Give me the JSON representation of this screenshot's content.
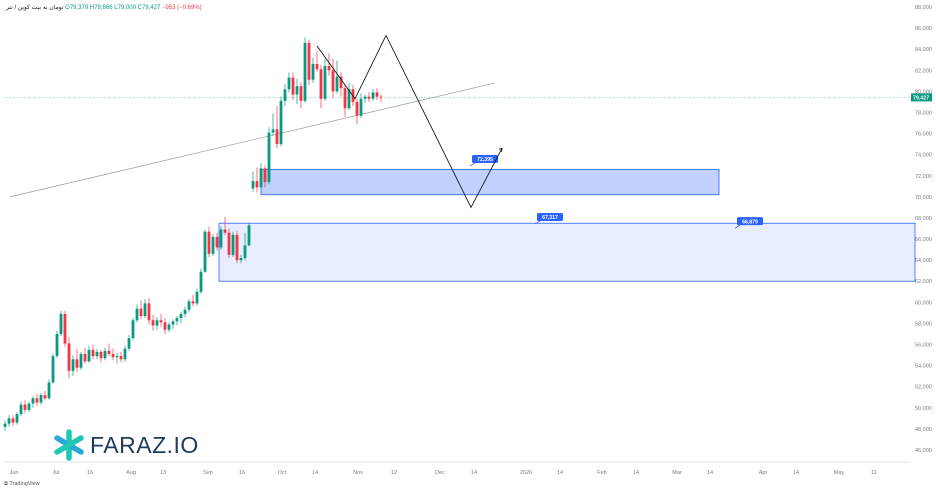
{
  "header": {
    "symbol": "تومان به بیت کوین / تتر",
    "open": "79,379",
    "high": "79,666",
    "low": "79,000",
    "close": "79,427",
    "change": "−953 (−0.69%)"
  },
  "brand": {
    "name": "FARAZ.IO"
  },
  "footer": {
    "provider": "TradingView"
  },
  "colors": {
    "up": "#089981",
    "down": "#f23645",
    "zone_strong": "#2962ff",
    "zone_light": "#e8eeff",
    "path": "#131722"
  },
  "chart_data": {
    "type": "candlestick",
    "ylim": [
      45000,
      88000
    ],
    "y_ticks": [
      46000,
      48000,
      50000,
      52000,
      54000,
      56000,
      58000,
      60000,
      62000,
      64000,
      66000,
      68000,
      70000,
      72000,
      74000,
      76000,
      78000,
      80000,
      82000,
      84000,
      86000,
      88000
    ],
    "x_ticks": [
      "Jun",
      "Jul",
      "16",
      "Aug",
      "13",
      "Sep",
      "16",
      "Oct",
      "14",
      "Nov",
      "12",
      "Dec",
      "14",
      "2026",
      "14",
      "Feb",
      "14",
      "Mar",
      "14",
      "Apr",
      "14",
      "May",
      "11"
    ],
    "last_price": "79,427",
    "last_price_value": 79427,
    "candles": [
      {
        "t": 0,
        "o": 48200,
        "h": 48800,
        "l": 47800,
        "c": 48500
      },
      {
        "t": 4,
        "o": 48500,
        "h": 49300,
        "l": 48200,
        "c": 49000
      },
      {
        "t": 8,
        "o": 49000,
        "h": 49300,
        "l": 48300,
        "c": 48600
      },
      {
        "t": 12,
        "o": 48600,
        "h": 49600,
        "l": 48400,
        "c": 49400
      },
      {
        "t": 16,
        "o": 49400,
        "h": 50600,
        "l": 49200,
        "c": 50300
      },
      {
        "t": 20,
        "o": 50300,
        "h": 50700,
        "l": 49500,
        "c": 49800
      },
      {
        "t": 24,
        "o": 49800,
        "h": 50600,
        "l": 49600,
        "c": 50400
      },
      {
        "t": 28,
        "o": 50400,
        "h": 51100,
        "l": 50000,
        "c": 50900
      },
      {
        "t": 32,
        "o": 50900,
        "h": 51300,
        "l": 50200,
        "c": 50500
      },
      {
        "t": 36,
        "o": 50500,
        "h": 51400,
        "l": 50300,
        "c": 51200
      },
      {
        "t": 40,
        "o": 51200,
        "h": 51600,
        "l": 50700,
        "c": 50900
      },
      {
        "t": 44,
        "o": 50900,
        "h": 52700,
        "l": 50800,
        "c": 52400
      },
      {
        "t": 48,
        "o": 52400,
        "h": 55100,
        "l": 52300,
        "c": 54900
      },
      {
        "t": 52,
        "o": 54900,
        "h": 57300,
        "l": 54700,
        "c": 57000
      },
      {
        "t": 56,
        "o": 57000,
        "h": 59200,
        "l": 56800,
        "c": 58900
      },
      {
        "t": 60,
        "o": 58900,
        "h": 59200,
        "l": 55800,
        "c": 56100
      },
      {
        "t": 64,
        "o": 56100,
        "h": 56700,
        "l": 52800,
        "c": 53500
      },
      {
        "t": 68,
        "o": 53500,
        "h": 55000,
        "l": 53000,
        "c": 54600
      },
      {
        "t": 72,
        "o": 54600,
        "h": 55600,
        "l": 53400,
        "c": 53800
      },
      {
        "t": 76,
        "o": 53800,
        "h": 55300,
        "l": 53600,
        "c": 55100
      },
      {
        "t": 80,
        "o": 55100,
        "h": 55700,
        "l": 54200,
        "c": 54400
      },
      {
        "t": 84,
        "o": 54400,
        "h": 55900,
        "l": 54300,
        "c": 55500
      },
      {
        "t": 88,
        "o": 55500,
        "h": 56000,
        "l": 54600,
        "c": 54900
      },
      {
        "t": 92,
        "o": 54900,
        "h": 55600,
        "l": 54600,
        "c": 55300
      },
      {
        "t": 96,
        "o": 55300,
        "h": 55500,
        "l": 54300,
        "c": 54700
      },
      {
        "t": 100,
        "o": 54700,
        "h": 55700,
        "l": 54500,
        "c": 55400
      },
      {
        "t": 104,
        "o": 55400,
        "h": 56100,
        "l": 54900,
        "c": 55100
      },
      {
        "t": 108,
        "o": 55100,
        "h": 55600,
        "l": 54500,
        "c": 54800
      },
      {
        "t": 112,
        "o": 54800,
        "h": 55200,
        "l": 54200,
        "c": 54900
      },
      {
        "t": 116,
        "o": 54900,
        "h": 55300,
        "l": 54300,
        "c": 54600
      },
      {
        "t": 120,
        "o": 54600,
        "h": 55900,
        "l": 54400,
        "c": 55600
      },
      {
        "t": 124,
        "o": 55600,
        "h": 56900,
        "l": 55400,
        "c": 56600
      },
      {
        "t": 128,
        "o": 56600,
        "h": 58500,
        "l": 56400,
        "c": 58300
      },
      {
        "t": 132,
        "o": 58300,
        "h": 59800,
        "l": 58100,
        "c": 59400
      },
      {
        "t": 136,
        "o": 59400,
        "h": 60200,
        "l": 58400,
        "c": 58700
      },
      {
        "t": 140,
        "o": 58700,
        "h": 60300,
        "l": 58500,
        "c": 59900
      },
      {
        "t": 144,
        "o": 59900,
        "h": 60400,
        "l": 57900,
        "c": 58300
      },
      {
        "t": 148,
        "o": 58300,
        "h": 58800,
        "l": 57300,
        "c": 57800
      },
      {
        "t": 152,
        "o": 57800,
        "h": 58600,
        "l": 57400,
        "c": 58300
      },
      {
        "t": 156,
        "o": 58300,
        "h": 58900,
        "l": 57700,
        "c": 58100
      },
      {
        "t": 160,
        "o": 58100,
        "h": 58500,
        "l": 57000,
        "c": 57400
      },
      {
        "t": 164,
        "o": 57400,
        "h": 58100,
        "l": 57200,
        "c": 57900
      },
      {
        "t": 168,
        "o": 57900,
        "h": 58400,
        "l": 57500,
        "c": 58200
      },
      {
        "t": 172,
        "o": 58200,
        "h": 58700,
        "l": 57800,
        "c": 58500
      },
      {
        "t": 176,
        "o": 58500,
        "h": 59100,
        "l": 58000,
        "c": 58900
      },
      {
        "t": 180,
        "o": 58900,
        "h": 59600,
        "l": 58600,
        "c": 59300
      },
      {
        "t": 184,
        "o": 59300,
        "h": 60300,
        "l": 59100,
        "c": 60100
      },
      {
        "t": 188,
        "o": 60100,
        "h": 60700,
        "l": 59600,
        "c": 59900
      },
      {
        "t": 192,
        "o": 59900,
        "h": 61300,
        "l": 59700,
        "c": 61000
      },
      {
        "t": 196,
        "o": 61000,
        "h": 63200,
        "l": 60800,
        "c": 62900
      },
      {
        "t": 200,
        "o": 62900,
        "h": 66900,
        "l": 62800,
        "c": 66700
      },
      {
        "t": 204,
        "o": 66700,
        "h": 67200,
        "l": 64300,
        "c": 64600
      },
      {
        "t": 208,
        "o": 64600,
        "h": 66500,
        "l": 64400,
        "c": 66200
      },
      {
        "t": 212,
        "o": 66200,
        "h": 66600,
        "l": 64900,
        "c": 65200
      },
      {
        "t": 216,
        "o": 65200,
        "h": 67200,
        "l": 65000,
        "c": 66900
      },
      {
        "t": 220,
        "o": 66900,
        "h": 68100,
        "l": 66400,
        "c": 66600
      },
      {
        "t": 224,
        "o": 66600,
        "h": 67000,
        "l": 64200,
        "c": 64500
      },
      {
        "t": 228,
        "o": 64500,
        "h": 66700,
        "l": 64300,
        "c": 66400
      },
      {
        "t": 232,
        "o": 66400,
        "h": 66800,
        "l": 63700,
        "c": 64000
      },
      {
        "t": 236,
        "o": 64000,
        "h": 64500,
        "l": 63700,
        "c": 64200
      },
      {
        "t": 240,
        "o": 64200,
        "h": 66600,
        "l": 64000,
        "c": 65400
      },
      {
        "t": 244,
        "o": 65400,
        "h": 67500,
        "l": 65300,
        "c": 67300
      },
      {
        "t": 248,
        "o": 70800,
        "h": 72400,
        "l": 70500,
        "c": 71500
      },
      {
        "t": 252,
        "o": 71500,
        "h": 72800,
        "l": 70400,
        "c": 70900
      },
      {
        "t": 256,
        "o": 70900,
        "h": 73200,
        "l": 70800,
        "c": 72700
      },
      {
        "t": 260,
        "o": 72700,
        "h": 73000,
        "l": 70900,
        "c": 71400
      },
      {
        "t": 264,
        "o": 71400,
        "h": 76600,
        "l": 71200,
        "c": 76100
      },
      {
        "t": 268,
        "o": 76100,
        "h": 77900,
        "l": 75800,
        "c": 76400
      },
      {
        "t": 272,
        "o": 76400,
        "h": 78600,
        "l": 74600,
        "c": 75000
      },
      {
        "t": 276,
        "o": 75000,
        "h": 79500,
        "l": 74800,
        "c": 79100
      },
      {
        "t": 280,
        "o": 79100,
        "h": 80700,
        "l": 78600,
        "c": 80200
      },
      {
        "t": 284,
        "o": 80200,
        "h": 81800,
        "l": 79900,
        "c": 81300
      },
      {
        "t": 288,
        "o": 81300,
        "h": 81800,
        "l": 79200,
        "c": 79700
      },
      {
        "t": 292,
        "o": 79700,
        "h": 81200,
        "l": 78800,
        "c": 80500
      },
      {
        "t": 296,
        "o": 80500,
        "h": 80900,
        "l": 78400,
        "c": 79100
      },
      {
        "t": 300,
        "o": 79100,
        "h": 85100,
        "l": 78900,
        "c": 84600
      },
      {
        "t": 304,
        "o": 84600,
        "h": 84900,
        "l": 80600,
        "c": 81100
      },
      {
        "t": 308,
        "o": 81100,
        "h": 83200,
        "l": 80800,
        "c": 82600
      },
      {
        "t": 312,
        "o": 82600,
        "h": 83800,
        "l": 81900,
        "c": 82100
      },
      {
        "t": 316,
        "o": 82100,
        "h": 82500,
        "l": 78400,
        "c": 79300
      },
      {
        "t": 320,
        "o": 79300,
        "h": 83100,
        "l": 79100,
        "c": 82400
      },
      {
        "t": 324,
        "o": 82400,
        "h": 83600,
        "l": 81500,
        "c": 82000
      },
      {
        "t": 328,
        "o": 82000,
        "h": 83100,
        "l": 79400,
        "c": 80000
      },
      {
        "t": 332,
        "o": 80000,
        "h": 82900,
        "l": 79800,
        "c": 81400
      },
      {
        "t": 336,
        "o": 81400,
        "h": 81800,
        "l": 79500,
        "c": 80300
      },
      {
        "t": 340,
        "o": 80300,
        "h": 80700,
        "l": 77600,
        "c": 78400
      },
      {
        "t": 344,
        "o": 78400,
        "h": 80800,
        "l": 78200,
        "c": 80200
      },
      {
        "t": 348,
        "o": 80200,
        "h": 80600,
        "l": 78600,
        "c": 79000
      },
      {
        "t": 352,
        "o": 79000,
        "h": 79300,
        "l": 76900,
        "c": 77700
      },
      {
        "t": 356,
        "o": 77700,
        "h": 79800,
        "l": 77500,
        "c": 79300
      },
      {
        "t": 360,
        "o": 79300,
        "h": 79700,
        "l": 78900,
        "c": 79500
      },
      {
        "t": 364,
        "o": 79500,
        "h": 79900,
        "l": 79000,
        "c": 79300
      },
      {
        "t": 368,
        "o": 79300,
        "h": 80200,
        "l": 79100,
        "c": 79900
      },
      {
        "t": 372,
        "o": 79900,
        "h": 80300,
        "l": 79200,
        "c": 79500
      },
      {
        "t": 376,
        "o": 79500,
        "h": 79700,
        "l": 79000,
        "c": 79427
      }
    ],
    "zones": [
      {
        "label": "72,395",
        "top": 72600,
        "bottom": 70200,
        "t_start": 256,
        "t_end": 714,
        "label_t": 480,
        "label_y": 73500,
        "style": "strong"
      },
      {
        "label": "67,317",
        "top": 67500,
        "bottom": 62000,
        "t_start": 214,
        "t_end": 910,
        "label_t": 545,
        "label_y": 68000,
        "style": "light"
      },
      {
        "label": "66,879",
        "top": null,
        "bottom": null,
        "t_start": null,
        "t_end": null,
        "label_t": 745,
        "label_y": 67600,
        "style": "light"
      }
    ],
    "trendline": {
      "t1": 5,
      "y1": 70000,
      "t2": 490,
      "y2": 80800
    },
    "projection_path": [
      {
        "t": 312,
        "y": 84300
      },
      {
        "t": 350,
        "y": 79300
      },
      {
        "t": 381,
        "y": 85300
      },
      {
        "t": 466,
        "y": 69000
      },
      {
        "t": 497,
        "y": 74600
      }
    ]
  }
}
